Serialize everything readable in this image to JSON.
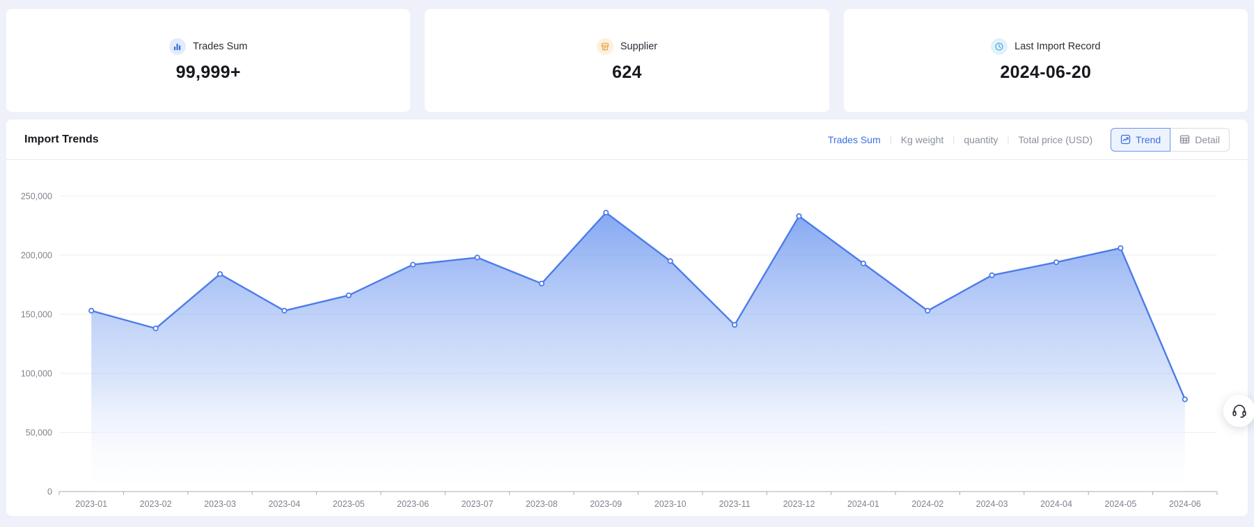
{
  "page": {
    "background_color": "#eef1f9",
    "accent_color": "#3a6fe0"
  },
  "stats": {
    "cards": [
      {
        "label": "Trades Sum",
        "value": "99,999+",
        "icon": "bar-chart-icon",
        "icon_color": "#3b6fe3",
        "icon_bg": "#e4ebfa"
      },
      {
        "label": "Supplier",
        "value": "624",
        "icon": "storefront-icon",
        "icon_color": "#e8a23f",
        "icon_bg": "#fcf1e0"
      },
      {
        "label": "Last Import Record",
        "value": "2024-06-20",
        "icon": "clock-icon",
        "icon_color": "#42a0d8",
        "icon_bg": "#e0f2fa"
      }
    ]
  },
  "chart_card": {
    "title": "Import Trends",
    "metric_tabs": [
      {
        "label": "Trades Sum",
        "active": true
      },
      {
        "label": "Kg weight",
        "active": false
      },
      {
        "label": "quantity",
        "active": false
      },
      {
        "label": "Total price (USD)",
        "active": false
      }
    ],
    "view_toggle": [
      {
        "label": "Trend",
        "icon": "trend-icon",
        "active": true
      },
      {
        "label": "Detail",
        "icon": "table-icon",
        "active": false
      }
    ]
  },
  "chart_data": {
    "type": "area",
    "title": "Import Trends",
    "categories": [
      "2023-01",
      "2023-02",
      "2023-03",
      "2023-04",
      "2023-05",
      "2023-06",
      "2023-07",
      "2023-08",
      "2023-09",
      "2023-10",
      "2023-11",
      "2023-12",
      "2024-01",
      "2024-02",
      "2024-03",
      "2024-04",
      "2024-05",
      "2024-06"
    ],
    "series": [
      {
        "name": "Trades Sum",
        "values": [
          153000,
          138000,
          184000,
          153000,
          166000,
          192000,
          198000,
          176000,
          236000,
          195000,
          141000,
          233000,
          193000,
          153000,
          183000,
          194000,
          206000,
          78000
        ]
      }
    ],
    "ylim": [
      0,
      250000
    ],
    "y_ticks": [
      0,
      50000,
      100000,
      150000,
      200000,
      250000
    ],
    "y_tick_labels": [
      "0",
      "50,000",
      "100,000",
      "150,000",
      "200,000",
      "250,000"
    ],
    "grid": true,
    "legend": false,
    "line_color": "#4d7bea",
    "area_top_color": "#6390ef",
    "area_bottom_color": "#ffffff",
    "axis_label_color": "#7d828c"
  },
  "floating_button": {
    "icon": "headset-icon"
  }
}
